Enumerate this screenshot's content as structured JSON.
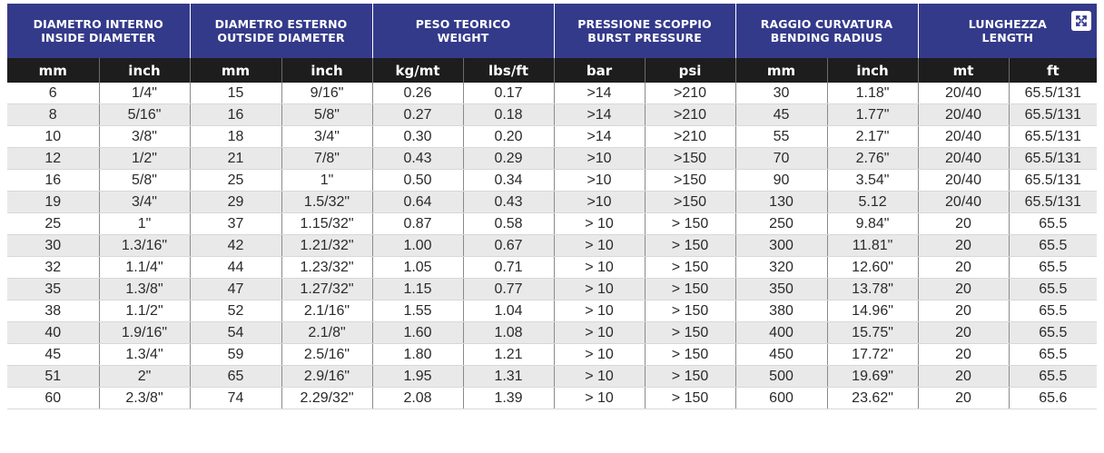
{
  "groups": [
    {
      "it": "DIAMETRO INTERNO",
      "en": "INSIDE DIAMETER"
    },
    {
      "it": "DIAMETRO ESTERNO",
      "en": "OUTSIDE DIAMETER"
    },
    {
      "it": "PESO TEORICO",
      "en": "WEIGHT"
    },
    {
      "it": "PRESSIONE SCOPPIO",
      "en": "BURST PRESSURE"
    },
    {
      "it": "RAGGIO CURVATURA",
      "en": "BENDING RADIUS"
    },
    {
      "it": "LUNGHEZZA",
      "en": "LENGTH"
    }
  ],
  "units": [
    "mm",
    "inch",
    "mm",
    "inch",
    "kg/mt",
    "lbs/ft",
    "bar",
    "psi",
    "mm",
    "inch",
    "mt",
    "ft"
  ],
  "expand_icon": "expand-icon",
  "rows": [
    [
      "6",
      "1/4\"",
      "15",
      "9/16\"",
      "0.26",
      "0.17",
      ">14",
      ">210",
      "30",
      "1.18\"",
      "20/40",
      "65.5/131"
    ],
    [
      "8",
      "5/16\"",
      "16",
      "5/8\"",
      "0.27",
      "0.18",
      ">14",
      ">210",
      "45",
      "1.77\"",
      "20/40",
      "65.5/131"
    ],
    [
      "10",
      "3/8\"",
      "18",
      "3/4\"",
      "0.30",
      "0.20",
      ">14",
      ">210",
      "55",
      "2.17\"",
      "20/40",
      "65.5/131"
    ],
    [
      "12",
      "1/2\"",
      "21",
      "7/8\"",
      "0.43",
      "0.29",
      ">10",
      ">150",
      "70",
      "2.76\"",
      "20/40",
      "65.5/131"
    ],
    [
      "16",
      "5/8\"",
      "25",
      "1\"",
      "0.50",
      "0.34",
      ">10",
      ">150",
      "90",
      "3.54\"",
      "20/40",
      "65.5/131"
    ],
    [
      "19",
      "3/4\"",
      "29",
      "1.5/32\"",
      "0.64",
      "0.43",
      ">10",
      ">150",
      "130",
      "5.12",
      "20/40",
      "65.5/131"
    ],
    [
      "25",
      "1\"",
      "37",
      "1.15/32\"",
      "0.87",
      "0.58",
      "> 10",
      "> 150",
      "250",
      "9.84\"",
      "20",
      "65.5"
    ],
    [
      "30",
      "1.3/16\"",
      "42",
      "1.21/32\"",
      "1.00",
      "0.67",
      "> 10",
      "> 150",
      "300",
      "11.81\"",
      "20",
      "65.5"
    ],
    [
      "32",
      "1.1/4\"",
      "44",
      "1.23/32\"",
      "1.05",
      "0.71",
      "> 10",
      "> 150",
      "320",
      "12.60\"",
      "20",
      "65.5"
    ],
    [
      "35",
      "1.3/8\"",
      "47",
      "1.27/32\"",
      "1.15",
      "0.77",
      "> 10",
      "> 150",
      "350",
      "13.78\"",
      "20",
      "65.5"
    ],
    [
      "38",
      "1.1/2\"",
      "52",
      "2.1/16\"",
      "1.55",
      "1.04",
      "> 10",
      "> 150",
      "380",
      "14.96\"",
      "20",
      "65.5"
    ],
    [
      "40",
      "1.9/16\"",
      "54",
      "2.1/8\"",
      "1.60",
      "1.08",
      "> 10",
      "> 150",
      "400",
      "15.75\"",
      "20",
      "65.5"
    ],
    [
      "45",
      "1.3/4\"",
      "59",
      "2.5/16\"",
      "1.80",
      "1.21",
      "> 10",
      "> 150",
      "450",
      "17.72\"",
      "20",
      "65.5"
    ],
    [
      "51",
      "2\"",
      "65",
      "2.9/16\"",
      "1.95",
      "1.31",
      "> 10",
      "> 150",
      "500",
      "19.69\"",
      "20",
      "65.5"
    ],
    [
      "60",
      "2.3/8\"",
      "74",
      "2.29/32\"",
      "2.08",
      "1.39",
      "> 10",
      "> 150",
      "600",
      "23.62\"",
      "20",
      "65.6"
    ]
  ]
}
